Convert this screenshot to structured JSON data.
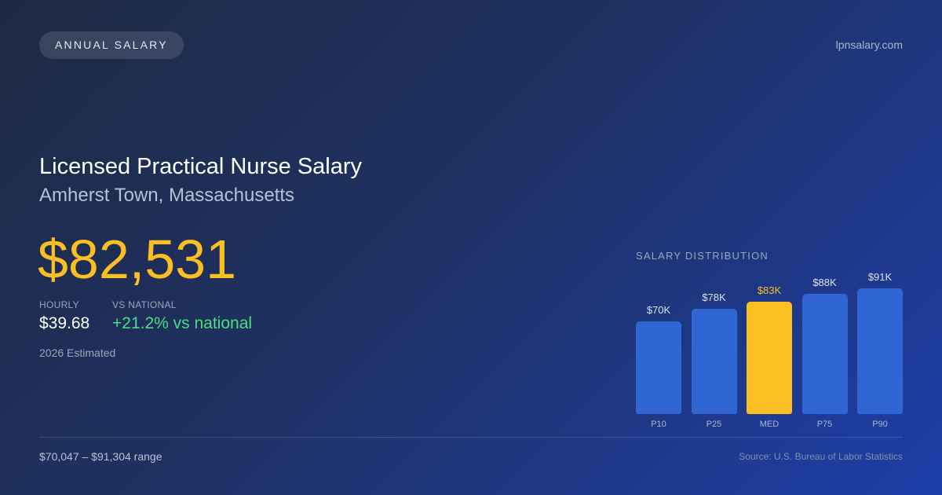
{
  "header": {
    "badge": "ANNUAL SALARY",
    "site": "lpnsalary.com"
  },
  "main": {
    "title": "Licensed Practical Nurse Salary",
    "location": "Amherst Town, Massachusetts",
    "annual_salary": "$82,531",
    "hourly_label": "HOURLY",
    "hourly_value": "$39.68",
    "national_label": "VS NATIONAL",
    "national_value": "+21.2% vs national",
    "estimate_note": "2026 Estimated"
  },
  "footer": {
    "range": "$70,047 – $91,304 range",
    "source": "Source: U.S. Bureau of Labor Statistics"
  },
  "colors": {
    "accent": "#fbbf24",
    "bar": "#2f66d4",
    "positive": "#4ade80"
  },
  "chart_data": {
    "type": "bar",
    "title": "SALARY DISTRIBUTION",
    "categories": [
      "P10",
      "P25",
      "MED",
      "P75",
      "P90"
    ],
    "values": [
      70047,
      78000,
      82531,
      88000,
      91304
    ],
    "value_labels": [
      "$70K",
      "$78K",
      "$83K",
      "$88K",
      "$91K"
    ],
    "highlight_index": 2,
    "grid": false,
    "legend": "none"
  }
}
